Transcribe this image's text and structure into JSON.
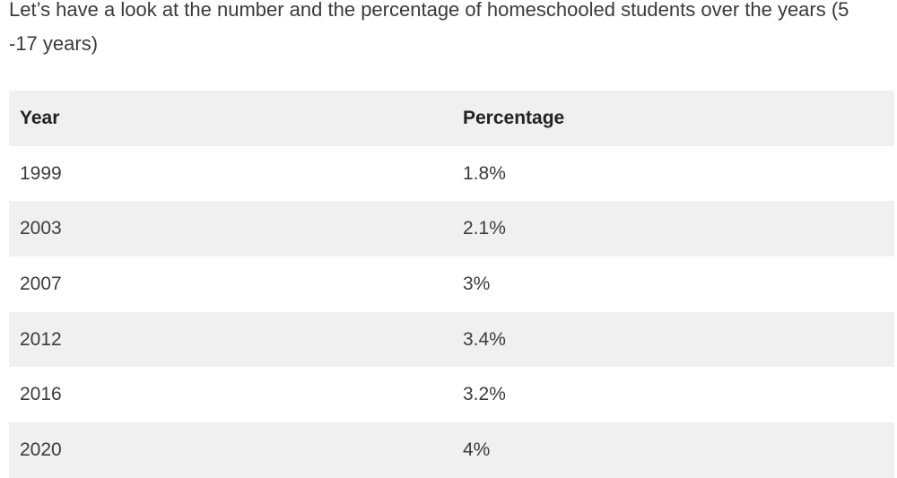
{
  "intro_text": "Let’s have a look at the number and the percentage of homeschooled students over the years (5 -17 years)",
  "table": {
    "headers": [
      "Year",
      "Percentage"
    ],
    "rows": [
      [
        "1999",
        "1.8%"
      ],
      [
        "2003",
        "2.1%"
      ],
      [
        "2007",
        "3%"
      ],
      [
        "2012",
        "3.4%"
      ],
      [
        "2016",
        "3.2%"
      ],
      [
        "2020",
        "4%"
      ]
    ]
  },
  "colors": {
    "shaded_row": "#f0f0f0",
    "plain_row": "#ffffff",
    "text": "#333333"
  }
}
